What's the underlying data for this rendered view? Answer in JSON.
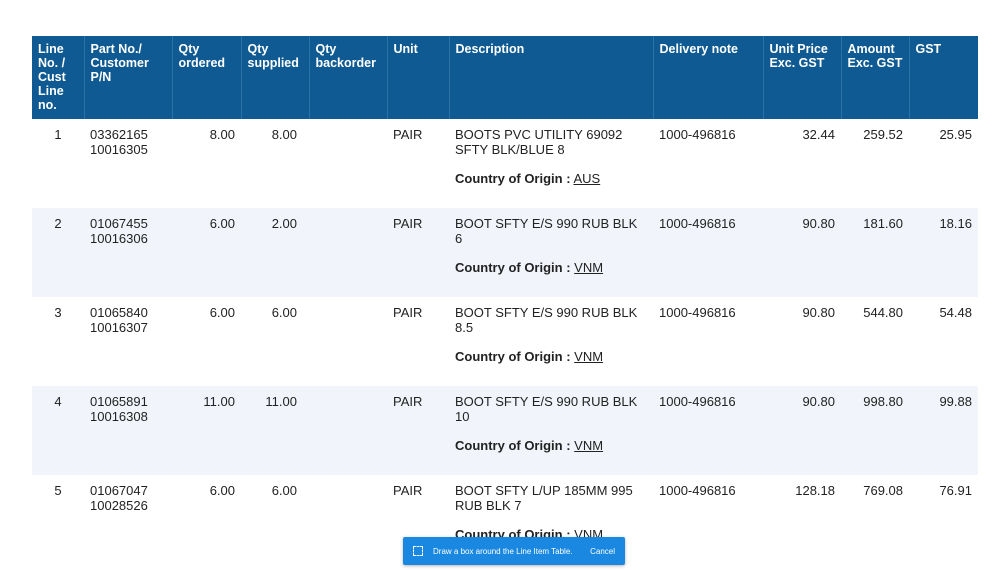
{
  "table": {
    "headers": [
      "Line No. / Cust Line no.",
      "Part No./ Customer P/N",
      "Qty ordered",
      "Qty supplied",
      "Qty backorder",
      "Unit",
      "Description",
      "Delivery note",
      "Unit Price Exc. GST",
      "Amount Exc. GST",
      "GST"
    ],
    "rows": [
      {
        "line": "1",
        "part": "03362165",
        "cust_pn": "10016305",
        "qty_ordered": "8.00",
        "qty_supplied": "8.00",
        "qty_backorder": "",
        "unit": "PAIR",
        "description": "BOOTS PVC UTILITY 69092 SFTY BLK/BLUE 8",
        "coo_label": "Country of Origin :",
        "coo_value": "AUS",
        "delivery_note": "1000-496816",
        "unit_price": "32.44",
        "amount": "259.52",
        "gst": "25.95"
      },
      {
        "line": "2",
        "part": "01067455",
        "cust_pn": "10016306",
        "qty_ordered": "6.00",
        "qty_supplied": "2.00",
        "qty_backorder": "",
        "unit": "PAIR",
        "description": "BOOT SFTY E/S 990 RUB BLK 6",
        "coo_label": "Country of Origin :",
        "coo_value": "VNM",
        "delivery_note": "1000-496816",
        "unit_price": "90.80",
        "amount": "181.60",
        "gst": "18.16"
      },
      {
        "line": "3",
        "part": "01065840",
        "cust_pn": "10016307",
        "qty_ordered": "6.00",
        "qty_supplied": "6.00",
        "qty_backorder": "",
        "unit": "PAIR",
        "description": "BOOT SFTY E/S 990 RUB BLK 8.5",
        "coo_label": "Country of Origin :",
        "coo_value": "VNM",
        "delivery_note": "1000-496816",
        "unit_price": "90.80",
        "amount": "544.80",
        "gst": "54.48"
      },
      {
        "line": "4",
        "part": "01065891",
        "cust_pn": "10016308",
        "qty_ordered": "11.00",
        "qty_supplied": "11.00",
        "qty_backorder": "",
        "unit": "PAIR",
        "description": "BOOT SFTY E/S 990 RUB BLK 10",
        "coo_label": "Country of Origin :",
        "coo_value": "VNM",
        "delivery_note": "1000-496816",
        "unit_price": "90.80",
        "amount": "998.80",
        "gst": "99.88"
      },
      {
        "line": "5",
        "part": "01067047",
        "cust_pn": "10028526",
        "qty_ordered": "6.00",
        "qty_supplied": "6.00",
        "qty_backorder": "",
        "unit": "PAIR",
        "description": "BOOT SFTY L/UP 185MM 995 RUB BLK 7",
        "coo_label": "Country of Origin :",
        "coo_value": "VNM",
        "delivery_note": "1000-496816",
        "unit_price": "128.18",
        "amount": "769.08",
        "gst": "76.91"
      }
    ]
  },
  "toast": {
    "icon": "selection-box-icon",
    "message": "Draw a box around the Line Item Table.",
    "cancel_label": "Cancel"
  },
  "colors": {
    "header_bg": "#0f5a92",
    "alt_row_bg": "#f1f5fb",
    "toast_bg": "#1a88e0"
  }
}
